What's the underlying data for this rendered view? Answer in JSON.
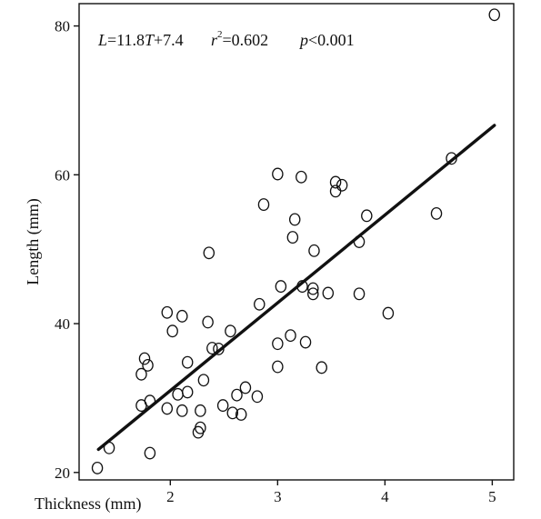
{
  "chart_data": {
    "type": "scatter",
    "title": "",
    "xlabel": "Thickness (mm)",
    "ylabel": "Length (mm)",
    "xlim": [
      1.15,
      5.2
    ],
    "ylim": [
      19,
      83
    ],
    "x_ticks": [
      2,
      3,
      4,
      5
    ],
    "y_ticks": [
      20,
      40,
      60,
      80
    ],
    "x_tick_labels": [
      "2",
      "3",
      "4",
      "5"
    ],
    "y_tick_labels": [
      "20",
      "40",
      "60",
      "80"
    ],
    "grid": false,
    "legend": "none",
    "annotation": {
      "equation_lhs": "L",
      "equation_eq": "=11.8",
      "equation_var": "T",
      "equation_rest": "+7.4",
      "r2_symbol": "r",
      "r2_exp": "2",
      "r2_value": "=0.602",
      "p_symbol": "p",
      "p_value": "<0.001"
    },
    "regression": {
      "slope": 11.8,
      "intercept": 7.4,
      "x_range": [
        1.33,
        5.02
      ]
    },
    "series": [
      {
        "marker": "open-circle",
        "points": [
          [
            1.32,
            20.6
          ],
          [
            1.43,
            23.3
          ],
          [
            1.81,
            22.6
          ],
          [
            1.73,
            33.2
          ],
          [
            1.76,
            35.3
          ],
          [
            1.79,
            34.4
          ],
          [
            1.73,
            29.0
          ],
          [
            1.81,
            29.6
          ],
          [
            1.97,
            41.5
          ],
          [
            2.02,
            39.0
          ],
          [
            2.11,
            41.0
          ],
          [
            1.97,
            28.6
          ],
          [
            2.07,
            30.5
          ],
          [
            2.11,
            28.3
          ],
          [
            2.16,
            30.8
          ],
          [
            2.16,
            34.8
          ],
          [
            2.26,
            25.4
          ],
          [
            2.28,
            26.0
          ],
          [
            2.28,
            28.3
          ],
          [
            2.31,
            32.4
          ],
          [
            2.35,
            40.2
          ],
          [
            2.36,
            49.5
          ],
          [
            2.39,
            36.7
          ],
          [
            2.45,
            36.6
          ],
          [
            2.49,
            29.0
          ],
          [
            2.56,
            39.0
          ],
          [
            2.58,
            28.0
          ],
          [
            2.62,
            30.4
          ],
          [
            2.66,
            27.8
          ],
          [
            2.7,
            31.4
          ],
          [
            2.81,
            30.2
          ],
          [
            2.83,
            42.6
          ],
          [
            2.87,
            56.0
          ],
          [
            3.0,
            60.1
          ],
          [
            3.0,
            37.3
          ],
          [
            3.0,
            34.2
          ],
          [
            3.03,
            45.0
          ],
          [
            3.12,
            38.4
          ],
          [
            3.14,
            51.6
          ],
          [
            3.16,
            54.0
          ],
          [
            3.22,
            59.7
          ],
          [
            3.23,
            45.0
          ],
          [
            3.26,
            37.5
          ],
          [
            3.33,
            44.7
          ],
          [
            3.33,
            44.0
          ],
          [
            3.34,
            49.8
          ],
          [
            3.41,
            34.1
          ],
          [
            3.47,
            44.1
          ],
          [
            3.54,
            59.0
          ],
          [
            3.54,
            57.8
          ],
          [
            3.6,
            58.6
          ],
          [
            3.76,
            51.0
          ],
          [
            3.76,
            44.0
          ],
          [
            3.83,
            54.5
          ],
          [
            4.03,
            41.4
          ],
          [
            4.48,
            54.8
          ],
          [
            4.62,
            62.2
          ],
          [
            5.02,
            81.5
          ]
        ]
      }
    ]
  }
}
